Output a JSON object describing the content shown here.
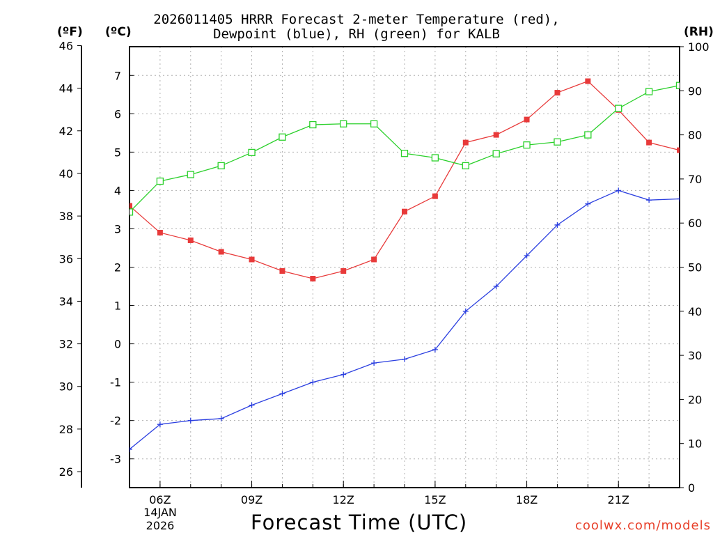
{
  "title": {
    "line1": "2026011405 HRRR Forecast 2-meter Temperature (red),",
    "line2": "Dewpoint (blue), RH (green) for KALB"
  },
  "units": {
    "fahrenheit": "(ºF)",
    "celsius": "(ºC)",
    "rh": "(RH)"
  },
  "xlabel": "Forecast Time (UTC)",
  "date": {
    "day": "14JAN",
    "year": "2026"
  },
  "credit": "coolwx.com/models",
  "colors": {
    "temperature": "#e83a3a",
    "dewpoint": "#2b3fe0",
    "rh": "#2ad02a",
    "grid": "#b0b0b0"
  },
  "chart_data": {
    "type": "line",
    "title": "2026011405 HRRR Forecast 2-meter Temperature (red), Dewpoint (blue), RH (green) for KALB",
    "xlabel": "Forecast Time (UTC)",
    "x_hours": [
      5,
      6,
      7,
      8,
      9,
      10,
      11,
      12,
      13,
      14,
      15,
      16,
      17,
      18,
      19,
      20,
      21,
      22,
      23
    ],
    "x_ticks": [
      {
        "hour": 6,
        "label": "06Z"
      },
      {
        "hour": 9,
        "label": "09Z"
      },
      {
        "hour": 12,
        "label": "12Z"
      },
      {
        "hour": 15,
        "label": "15Z"
      },
      {
        "hour": 18,
        "label": "18Z"
      },
      {
        "hour": 21,
        "label": "21Z"
      }
    ],
    "xlim": [
      5,
      23
    ],
    "left_axis_celsius": {
      "label": "(ºC)",
      "ticks": [
        -3,
        -2,
        -1,
        0,
        1,
        2,
        3,
        4,
        5,
        6,
        7
      ],
      "ylim": [
        -3.75,
        7.75
      ]
    },
    "left_axis_fahrenheit": {
      "label": "(ºF)",
      "ticks": [
        26,
        28,
        30,
        32,
        34,
        36,
        38,
        40,
        42,
        44,
        46
      ]
    },
    "right_axis_rh": {
      "label": "(RH)",
      "ticks": [
        0,
        10,
        20,
        30,
        40,
        50,
        60,
        70,
        80,
        90,
        100
      ],
      "ylim": [
        0,
        100
      ]
    },
    "series": [
      {
        "name": "Temperature",
        "axis": "celsius",
        "marker": "filled-square",
        "values": [
          3.6,
          2.9,
          2.7,
          2.4,
          2.2,
          1.9,
          1.7,
          1.9,
          2.2,
          3.45,
          3.85,
          5.25,
          5.45,
          5.85,
          6.55,
          6.85,
          6.1,
          5.25,
          5.05
        ]
      },
      {
        "name": "Dewpoint",
        "axis": "celsius",
        "marker": "plus",
        "values": [
          -2.75,
          -2.1,
          -2.0,
          -1.95,
          -1.6,
          -1.3,
          -1.0,
          -0.8,
          -0.5,
          -0.4,
          -0.15,
          0.85,
          1.5,
          2.3,
          3.1,
          3.65,
          4.0,
          3.75,
          3.78
        ]
      },
      {
        "name": "RH",
        "axis": "rh",
        "marker": "open-square",
        "values": [
          62.5,
          69.5,
          71.0,
          73.0,
          76.0,
          79.5,
          82.3,
          82.5,
          82.5,
          75.8,
          74.8,
          73.0,
          75.7,
          77.7,
          78.4,
          80.0,
          86.0,
          89.8,
          91.2
        ]
      }
    ]
  }
}
